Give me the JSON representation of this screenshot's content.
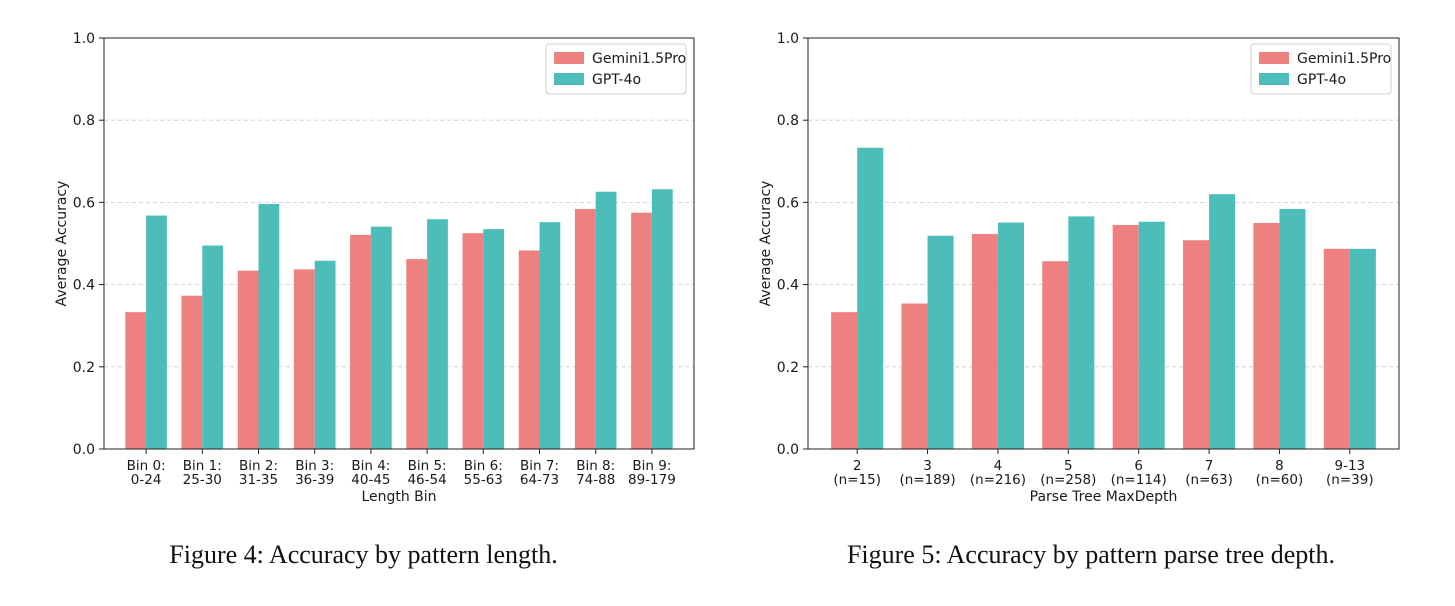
{
  "chart_data": [
    {
      "type": "bar",
      "caption": "Figure 4: Accuracy by pattern length.",
      "xlabel": "Length Bin",
      "ylabel": "Average Accuracy",
      "ylim": [
        0,
        1.0
      ],
      "yticks": [
        "0.0",
        "0.2",
        "0.4",
        "0.6",
        "0.8",
        "1.0"
      ],
      "grid": "horizontal-dashed",
      "legend_position": "top-right",
      "categories": [
        [
          "Bin 0:",
          "0-24"
        ],
        [
          "Bin 1:",
          "25-30"
        ],
        [
          "Bin 2:",
          "31-35"
        ],
        [
          "Bin 3:",
          "36-39"
        ],
        [
          "Bin 4:",
          "40-45"
        ],
        [
          "Bin 5:",
          "46-54"
        ],
        [
          "Bin 6:",
          "55-63"
        ],
        [
          "Bin 7:",
          "64-73"
        ],
        [
          "Bin 8:",
          "74-88"
        ],
        [
          "Bin 9:",
          "89-179"
        ]
      ],
      "series": [
        {
          "name": "Gemini1.5Pro",
          "color": "#ef8080",
          "values": [
            0.333,
            0.373,
            0.434,
            0.437,
            0.521,
            0.462,
            0.525,
            0.483,
            0.584,
            0.575
          ]
        },
        {
          "name": "GPT-4o",
          "color": "#4dbdba",
          "values": [
            0.568,
            0.495,
            0.596,
            0.458,
            0.541,
            0.559,
            0.535,
            0.552,
            0.626,
            0.632
          ]
        }
      ]
    },
    {
      "type": "bar",
      "caption": "Figure 5: Accuracy by pattern parse tree depth.",
      "xlabel": "Parse Tree MaxDepth",
      "ylabel": "Average Accuracy",
      "ylim": [
        0,
        1.0
      ],
      "yticks": [
        "0.0",
        "0.2",
        "0.4",
        "0.6",
        "0.8",
        "1.0"
      ],
      "grid": "horizontal-dashed",
      "legend_position": "top-right",
      "categories": [
        [
          "2",
          "(n=15)"
        ],
        [
          "3",
          "(n=189)"
        ],
        [
          "4",
          "(n=216)"
        ],
        [
          "5",
          "(n=258)"
        ],
        [
          "6",
          "(n=114)"
        ],
        [
          "7",
          "(n=63)"
        ],
        [
          "8",
          "(n=60)"
        ],
        [
          "9-13",
          "(n=39)"
        ]
      ],
      "series": [
        {
          "name": "Gemini1.5Pro",
          "color": "#ef8080",
          "values": [
            0.333,
            0.354,
            0.523,
            0.457,
            0.545,
            0.508,
            0.55,
            0.487
          ]
        },
        {
          "name": "GPT-4o",
          "color": "#4dbdba",
          "values": [
            0.733,
            0.519,
            0.551,
            0.566,
            0.553,
            0.62,
            0.584,
            0.487
          ]
        }
      ]
    }
  ]
}
